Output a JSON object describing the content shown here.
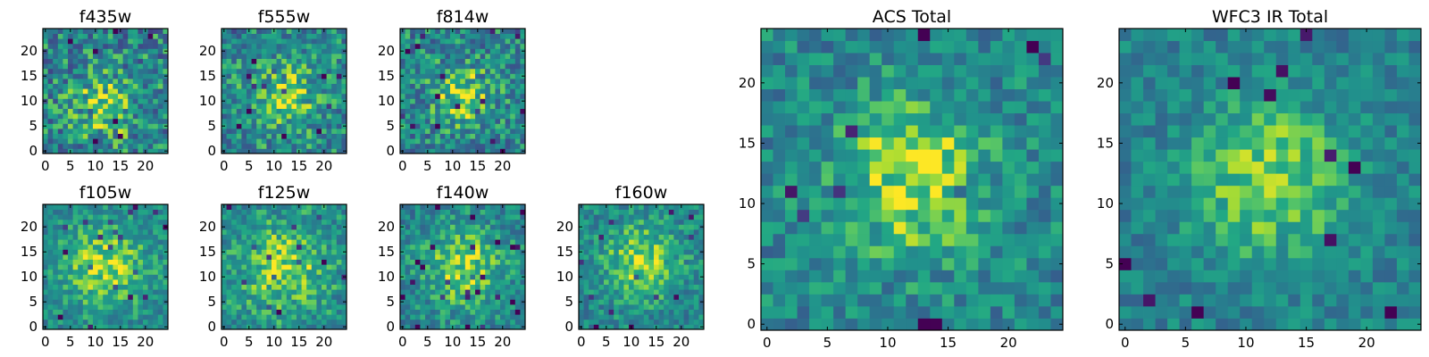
{
  "chart_data": [
    {
      "id": "f435w",
      "type": "heatmap",
      "title": "f435w",
      "grid_size": 25,
      "xlim": [
        0,
        24
      ],
      "ylim": [
        0,
        24
      ],
      "xticks": [
        0,
        5,
        10,
        15,
        20
      ],
      "yticks": [
        0,
        5,
        10,
        15,
        20
      ],
      "xtick_labels": [
        "0",
        "5",
        "10",
        "15",
        "20"
      ],
      "ytick_labels": [
        "0",
        "5",
        "10",
        "15",
        "20"
      ],
      "colormap": "viridis",
      "peak": [
        12,
        9
      ],
      "sigma": 4.5,
      "amplitude": 0.28,
      "base": 0.55,
      "noise": 0.3,
      "seed": 11
    },
    {
      "id": "f555w",
      "type": "heatmap",
      "title": "f555w",
      "grid_size": 25,
      "xlim": [
        0,
        24
      ],
      "ylim": [
        0,
        24
      ],
      "xticks": [
        0,
        5,
        10,
        15,
        20
      ],
      "yticks": [
        0,
        5,
        10,
        15,
        20
      ],
      "xtick_labels": [
        "0",
        "5",
        "10",
        "15",
        "20"
      ],
      "ytick_labels": [
        "0",
        "5",
        "10",
        "15",
        "20"
      ],
      "colormap": "viridis",
      "peak": [
        12,
        11
      ],
      "sigma": 4.5,
      "amplitude": 0.3,
      "base": 0.58,
      "noise": 0.26,
      "seed": 23
    },
    {
      "id": "f814w",
      "type": "heatmap",
      "title": "f814w",
      "grid_size": 25,
      "xlim": [
        0,
        24
      ],
      "ylim": [
        0,
        24
      ],
      "xticks": [
        0,
        5,
        10,
        15,
        20
      ],
      "yticks": [
        0,
        5,
        10,
        15,
        20
      ],
      "xtick_labels": [
        "0",
        "5",
        "10",
        "15",
        "20"
      ],
      "ytick_labels": [
        "0",
        "5",
        "10",
        "15",
        "20"
      ],
      "colormap": "viridis",
      "peak": [
        12,
        11
      ],
      "sigma": 4.0,
      "amplitude": 0.33,
      "base": 0.56,
      "noise": 0.27,
      "seed": 37
    },
    {
      "id": "f105w",
      "type": "heatmap",
      "title": "f105w",
      "grid_size": 25,
      "xlim": [
        0,
        24
      ],
      "ylim": [
        0,
        24
      ],
      "xticks": [
        0,
        5,
        10,
        15,
        20
      ],
      "yticks": [
        0,
        5,
        10,
        15,
        20
      ],
      "xtick_labels": [
        "0",
        "5",
        "10",
        "15",
        "20"
      ],
      "ytick_labels": [
        "0",
        "5",
        "10",
        "15",
        "20"
      ],
      "colormap": "viridis",
      "peak": [
        12,
        12
      ],
      "sigma": 6.0,
      "amplitude": 0.32,
      "base": 0.58,
      "noise": 0.18,
      "seed": 41
    },
    {
      "id": "f125w",
      "type": "heatmap",
      "title": "f125w",
      "grid_size": 25,
      "xlim": [
        0,
        24
      ],
      "ylim": [
        0,
        24
      ],
      "xticks": [
        0,
        5,
        10,
        15,
        20
      ],
      "yticks": [
        0,
        5,
        10,
        15,
        20
      ],
      "xtick_labels": [
        "0",
        "5",
        "10",
        "15",
        "20"
      ],
      "ytick_labels": [
        "0",
        "5",
        "10",
        "15",
        "20"
      ],
      "colormap": "viridis",
      "peak": [
        12,
        12
      ],
      "sigma": 6.0,
      "amplitude": 0.3,
      "base": 0.6,
      "noise": 0.2,
      "seed": 53
    },
    {
      "id": "f140w",
      "type": "heatmap",
      "title": "f140w",
      "grid_size": 25,
      "xlim": [
        0,
        24
      ],
      "ylim": [
        0,
        24
      ],
      "xticks": [
        0,
        5,
        10,
        15,
        20
      ],
      "yticks": [
        0,
        5,
        10,
        15,
        20
      ],
      "xtick_labels": [
        "0",
        "5",
        "10",
        "15",
        "20"
      ],
      "ytick_labels": [
        "0",
        "5",
        "10",
        "15",
        "20"
      ],
      "colormap": "viridis",
      "peak": [
        12,
        12
      ],
      "sigma": 5.5,
      "amplitude": 0.32,
      "base": 0.57,
      "noise": 0.2,
      "seed": 67
    },
    {
      "id": "f160w",
      "type": "heatmap",
      "title": "f160w",
      "grid_size": 25,
      "xlim": [
        0,
        24
      ],
      "ylim": [
        0,
        24
      ],
      "xticks": [
        0,
        5,
        10,
        15,
        20
      ],
      "yticks": [
        0,
        5,
        10,
        15,
        20
      ],
      "xtick_labels": [
        "0",
        "5",
        "10",
        "15",
        "20"
      ],
      "ytick_labels": [
        "0",
        "5",
        "10",
        "15",
        "20"
      ],
      "colormap": "viridis",
      "peak": [
        12,
        13
      ],
      "sigma": 5.0,
      "amplitude": 0.34,
      "base": 0.58,
      "noise": 0.19,
      "seed": 79
    },
    {
      "id": "acs-total",
      "type": "heatmap",
      "title": "ACS Total",
      "grid_size": 25,
      "xlim": [
        0,
        24
      ],
      "ylim": [
        0,
        24
      ],
      "xticks": [
        0,
        5,
        10,
        15,
        20
      ],
      "yticks": [
        0,
        5,
        10,
        15,
        20
      ],
      "xtick_labels": [
        "0",
        "5",
        "10",
        "15",
        "20"
      ],
      "ytick_labels": [
        "0",
        "5",
        "10",
        "15",
        "20"
      ],
      "colormap": "viridis",
      "peak": [
        12,
        12
      ],
      "sigma": 4.2,
      "amplitude": 0.38,
      "base": 0.57,
      "noise": 0.2,
      "seed": 97
    },
    {
      "id": "wfc3-ir-total",
      "type": "heatmap",
      "title": "WFC3 IR Total",
      "grid_size": 25,
      "xlim": [
        0,
        24
      ],
      "ylim": [
        0,
        24
      ],
      "xticks": [
        0,
        5,
        10,
        15,
        20
      ],
      "yticks": [
        0,
        5,
        10,
        15,
        20
      ],
      "xtick_labels": [
        "0",
        "5",
        "10",
        "15",
        "20"
      ],
      "ytick_labels": [
        "0",
        "5",
        "10",
        "15",
        "20"
      ],
      "colormap": "viridis",
      "peak": [
        12,
        12
      ],
      "sigma": 4.5,
      "amplitude": 0.36,
      "base": 0.55,
      "noise": 0.16,
      "seed": 113
    }
  ]
}
